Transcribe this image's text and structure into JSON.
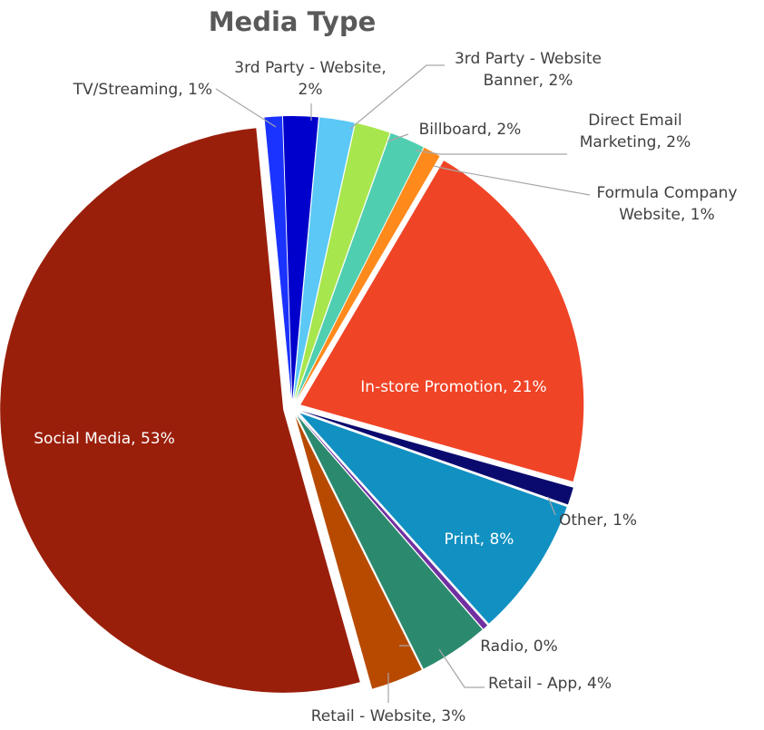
{
  "chart_data": {
    "type": "pie",
    "title": "Media Type",
    "slices": [
      {
        "name": "TV/Streaming",
        "label": "TV/Streaming, 1%",
        "value": 1,
        "color": "#1a33ff"
      },
      {
        "name": "3rd Party - Website",
        "label_lines": [
          "3rd Party - Website,",
          "2%"
        ],
        "value": 2,
        "color": "#0000cc"
      },
      {
        "name": "3rd Party - Website Banner",
        "label_lines": [
          "3rd Party - Website",
          "Banner, 2%"
        ],
        "value": 2,
        "color": "#5bc8f5"
      },
      {
        "name": "Billboard",
        "label": "Billboard, 2%",
        "value": 2,
        "color": "#a8e64d"
      },
      {
        "name": "Direct Email Marketing",
        "label_lines": [
          "Direct Email",
          "Marketing, 2%"
        ],
        "value": 2,
        "color": "#4fcfb0"
      },
      {
        "name": "Formula Company Website",
        "label_lines": [
          "Formula Company",
          "Website, 1%"
        ],
        "value": 1,
        "color": "#ff8a1c"
      },
      {
        "name": "In-store Promotion",
        "label": "In-store Promotion, 21%",
        "value": 21,
        "color": "#f04426"
      },
      {
        "name": "Other",
        "label": "Other, 1%",
        "value": 1,
        "color": "#0a0a6e"
      },
      {
        "name": "Print",
        "label": "Print, 8%",
        "value": 8,
        "color": "#1190c2"
      },
      {
        "name": "Radio",
        "label": "Radio, 0%",
        "value": 0.3,
        "color": "#7030a0"
      },
      {
        "name": "Retail - App",
        "label": "Retail - App, 4%",
        "value": 4,
        "color": "#2b8a6e"
      },
      {
        "name": "Retail - Website",
        "label": "Retail - Website, 3%",
        "value": 3,
        "color": "#b84a00"
      },
      {
        "name": "Social Media",
        "label": "Social Media, 53%",
        "value": 53,
        "color": "#9a1f0b"
      }
    ],
    "legend": "none"
  }
}
